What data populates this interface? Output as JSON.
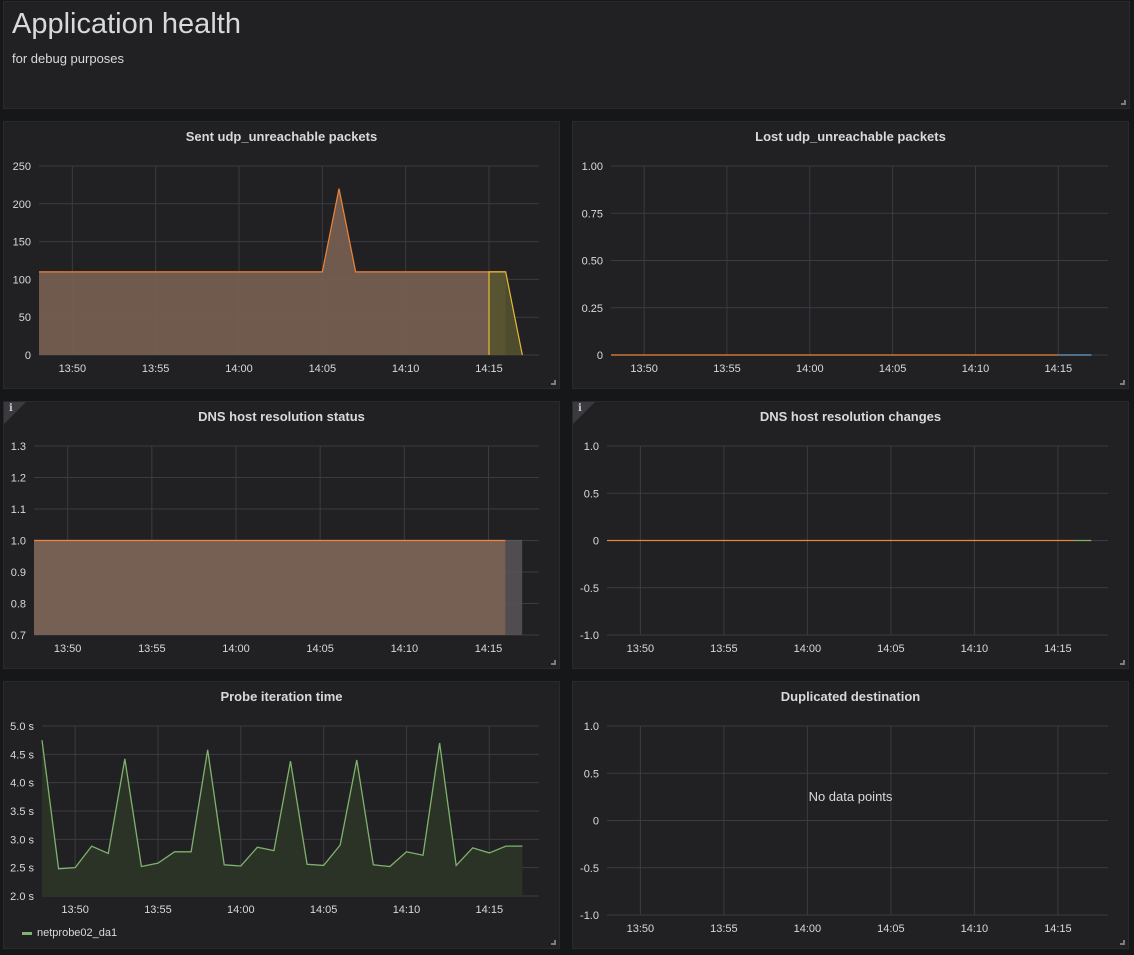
{
  "header": {
    "title": "Application health",
    "subtitle": "for debug purposes"
  },
  "colors": {
    "grid": "#3b3b40",
    "axis_text": "#d8d9da",
    "orange": "#ef843c",
    "orange_fill": "#7c6455",
    "yellow": "#eab839",
    "green": "#7eb26d",
    "blue": "#6d9fc8",
    "gray_fill": "#595458"
  },
  "x_ticks": [
    "13:50",
    "13:55",
    "14:00",
    "14:05",
    "14:10",
    "14:15"
  ],
  "x_range": [
    0,
    30
  ],
  "chart_data": [
    {
      "id": "sent",
      "type": "area",
      "title": "Sent udp_unreachable packets",
      "y_ticks": [
        {
          "v": 0,
          "label": "0"
        },
        {
          "v": 50,
          "label": "50"
        },
        {
          "v": 100,
          "label": "100"
        },
        {
          "v": 150,
          "label": "150"
        },
        {
          "v": 200,
          "label": "200"
        },
        {
          "v": 250,
          "label": "250"
        }
      ],
      "ylim": [
        0,
        250
      ],
      "series": [
        {
          "name": "series-orange",
          "color": "orange",
          "fill": "orange_fill",
          "points": [
            [
              0,
              0
            ],
            [
              0,
              110
            ],
            [
              17,
              110
            ],
            [
              18,
              220
            ],
            [
              19,
              110
            ],
            [
              28,
              110
            ],
            [
              28,
              0
            ]
          ]
        },
        {
          "name": "series-yellow",
          "color": "yellow",
          "fill": "#55532e",
          "points": [
            [
              27,
              0
            ],
            [
              27,
              110
            ],
            [
              28,
              110
            ],
            [
              29,
              0
            ]
          ]
        }
      ]
    },
    {
      "id": "lost",
      "type": "line",
      "title": "Lost udp_unreachable packets",
      "y_ticks": [
        {
          "v": 0,
          "label": "0"
        },
        {
          "v": 0.25,
          "label": "0.25"
        },
        {
          "v": 0.5,
          "label": "0.50"
        },
        {
          "v": 0.75,
          "label": "0.75"
        },
        {
          "v": 1,
          "label": "1.00"
        }
      ],
      "ylim": [
        0,
        1
      ],
      "series": [
        {
          "name": "series-orange",
          "color": "orange",
          "points": [
            [
              0,
              0
            ],
            [
              27,
              0
            ]
          ]
        },
        {
          "name": "series-blue",
          "color": "blue",
          "points": [
            [
              27,
              0
            ],
            [
              29,
              0
            ]
          ]
        }
      ]
    },
    {
      "id": "dns_status",
      "type": "area",
      "title": "DNS host resolution status",
      "y_ticks": [
        {
          "v": 0.7,
          "label": "0.7"
        },
        {
          "v": 0.8,
          "label": "0.8"
        },
        {
          "v": 0.9,
          "label": "0.9"
        },
        {
          "v": 1.0,
          "label": "1.0"
        },
        {
          "v": 1.1,
          "label": "1.1"
        },
        {
          "v": 1.2,
          "label": "1.2"
        },
        {
          "v": 1.3,
          "label": "1.3"
        }
      ],
      "ylim": [
        0.7,
        1.3
      ],
      "series": [
        {
          "name": "series-gray",
          "color": "gray_fill",
          "fill": "gray_fill",
          "points": [
            [
              0,
              0.7
            ],
            [
              0,
              1.0
            ],
            [
              29,
              1.0
            ],
            [
              29,
              0.7
            ]
          ]
        },
        {
          "name": "series-orange",
          "color": "orange",
          "fill": "orange_fill",
          "points": [
            [
              0,
              0.7
            ],
            [
              0,
              1.0
            ],
            [
              28,
              1.0
            ],
            [
              28,
              0.7
            ]
          ]
        }
      ]
    },
    {
      "id": "dns_changes",
      "type": "line",
      "title": "DNS host resolution changes",
      "y_ticks": [
        {
          "v": -1,
          "label": "-1.0"
        },
        {
          "v": -0.5,
          "label": "-0.5"
        },
        {
          "v": 0,
          "label": "0"
        },
        {
          "v": 0.5,
          "label": "0.5"
        },
        {
          "v": 1,
          "label": "1.0"
        }
      ],
      "ylim": [
        -1,
        1
      ],
      "series": [
        {
          "name": "series-orange",
          "color": "orange",
          "points": [
            [
              0,
              0
            ],
            [
              28,
              0
            ]
          ]
        },
        {
          "name": "series-green",
          "color": "green",
          "points": [
            [
              28,
              0
            ],
            [
              29,
              0
            ]
          ]
        }
      ]
    },
    {
      "id": "probe",
      "type": "line",
      "title": "Probe iteration time",
      "y_ticks": [
        {
          "v": 2.0,
          "label": "2.0 s"
        },
        {
          "v": 2.5,
          "label": "2.5 s"
        },
        {
          "v": 3.0,
          "label": "3.0 s"
        },
        {
          "v": 3.5,
          "label": "3.5 s"
        },
        {
          "v": 4.0,
          "label": "4.0 s"
        },
        {
          "v": 4.5,
          "label": "4.5 s"
        },
        {
          "v": 5.0,
          "label": "5.0 s"
        }
      ],
      "ylim": [
        2.0,
        5.0
      ],
      "legend": "netprobe02_da1",
      "series": [
        {
          "name": "netprobe02_da1",
          "color": "green",
          "fill": "#2b3326",
          "points": [
            [
              0,
              4.75
            ],
            [
              1,
              2.48
            ],
            [
              2,
              2.5
            ],
            [
              3,
              2.88
            ],
            [
              4,
              2.75
            ],
            [
              5,
              4.42
            ],
            [
              6,
              2.52
            ],
            [
              7,
              2.58
            ],
            [
              8,
              2.78
            ],
            [
              9,
              2.78
            ],
            [
              10,
              4.58
            ],
            [
              11,
              2.55
            ],
            [
              12,
              2.53
            ],
            [
              13,
              2.86
            ],
            [
              14,
              2.8
            ],
            [
              15,
              4.38
            ],
            [
              16,
              2.56
            ],
            [
              17,
              2.54
            ],
            [
              18,
              2.9
            ],
            [
              19,
              4.4
            ],
            [
              20,
              2.55
            ],
            [
              21,
              2.52
            ],
            [
              22,
              2.78
            ],
            [
              23,
              2.72
            ],
            [
              24,
              4.7
            ],
            [
              25,
              2.54
            ],
            [
              26,
              2.85
            ],
            [
              27,
              2.76
            ],
            [
              28,
              2.88
            ],
            [
              29,
              2.88
            ]
          ]
        }
      ]
    },
    {
      "id": "dup",
      "type": "line",
      "title": "Duplicated destination",
      "y_ticks": [
        {
          "v": -1,
          "label": "-1.0"
        },
        {
          "v": -0.5,
          "label": "-0.5"
        },
        {
          "v": 0,
          "label": "0"
        },
        {
          "v": 0.5,
          "label": "0.5"
        },
        {
          "v": 1,
          "label": "1.0"
        }
      ],
      "ylim": [
        -1,
        1
      ],
      "no_data": "No data points",
      "series": []
    }
  ]
}
